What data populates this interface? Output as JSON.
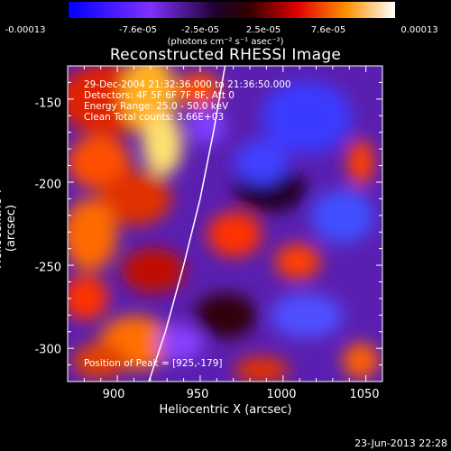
{
  "chart_data": {
    "type": "heatmap",
    "title": "Reconstructed RHESSI Image",
    "xlabel": "Heliocentric X (arcsec)",
    "ylabel": "Heliocentric Y (arcsec)",
    "xlim": [
      870,
      1060
    ],
    "ylim": [
      -320,
      -130
    ],
    "xticks": [
      "900",
      "950",
      "1000",
      "1050"
    ],
    "yticks": [
      "-150",
      "-200",
      "-250",
      "-300"
    ],
    "colorbar": {
      "ticks": [
        "-0.00013",
        "-7.6e-05",
        "-2.5e-05",
        "2.5e-05",
        "7.6e-05",
        "0.00013"
      ],
      "units": "(photons cm⁻² s⁻¹ asec⁻²)"
    },
    "peak": [
      925,
      -179
    ],
    "limb_curve": [
      [
        919,
        -320
      ],
      [
        929,
        -290
      ],
      [
        940,
        -250
      ],
      [
        950,
        -210
      ],
      [
        958,
        -170
      ],
      [
        965,
        -130
      ]
    ]
  },
  "annotations": {
    "time_range": "29-Dec-2004 21:32:36.000 to 21:36:50.000",
    "detectors": "Detectors: 4F 5F 6F 7F 8F, Att 0",
    "energy": "Energy Range: 25.0 - 50.0 keV",
    "method": "Clean    Total counts: 3.66E+03",
    "peak_label": "Position of Peak = [925,-179]"
  },
  "timestamp": "23-Jun-2013 22:28"
}
